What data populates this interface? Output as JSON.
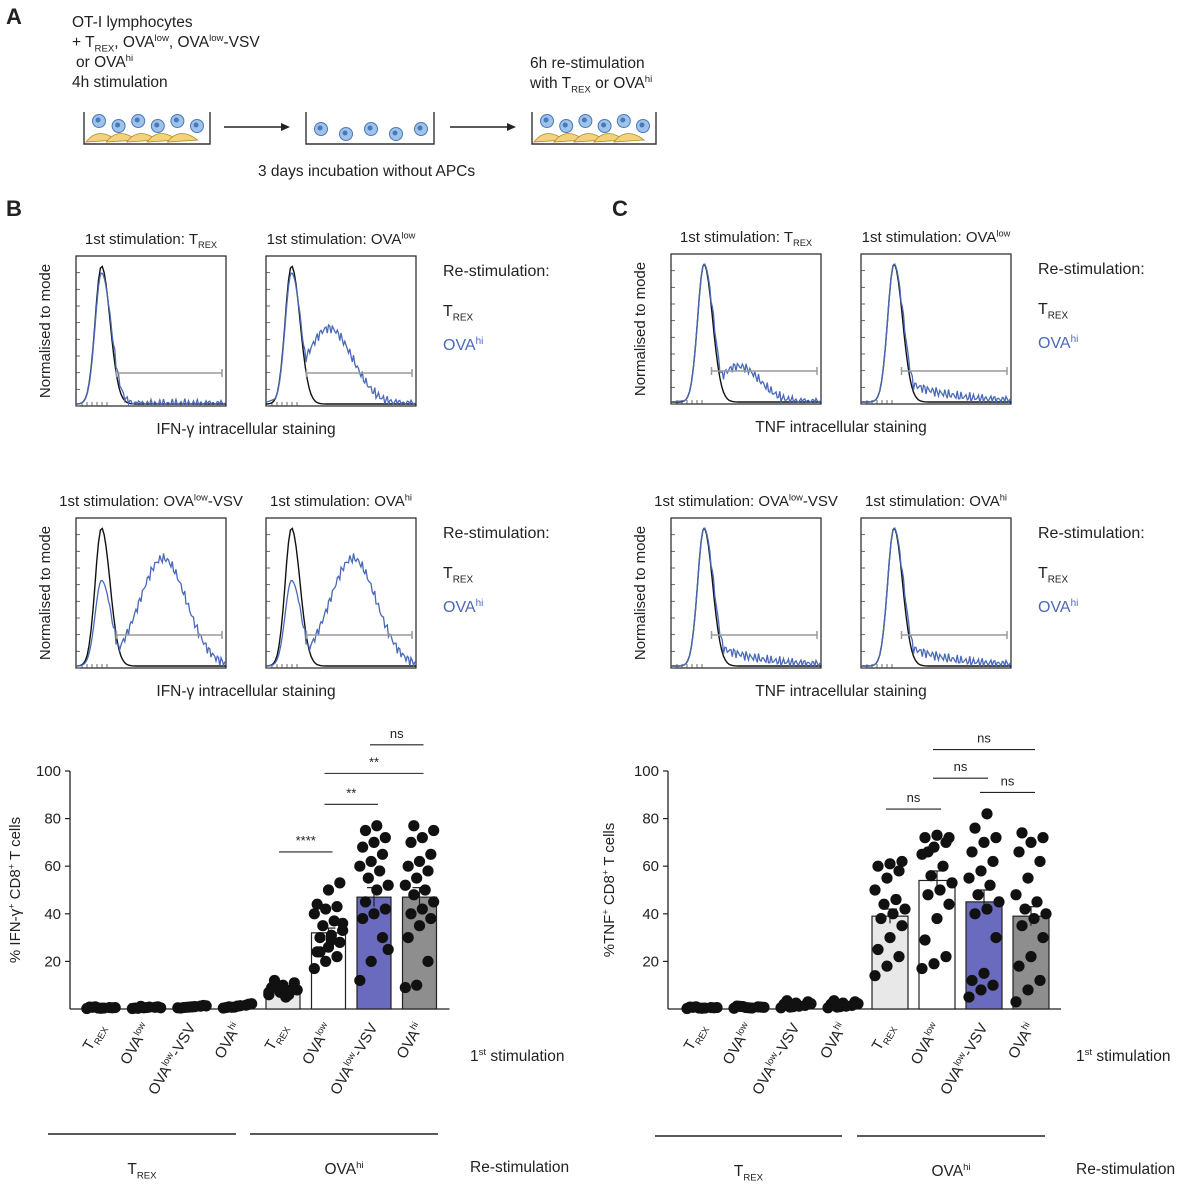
{
  "colors": {
    "black": "#111111",
    "blue": "#4a6ab8",
    "gate": "#9a9a9a",
    "bar_trex": "#e8e8e8",
    "bar_ovalow": "#ffffff",
    "bar_ovalowvsv": "#6a6abf",
    "bar_ovahi": "#8e8e8e"
  },
  "panelA": {
    "label": "A",
    "step1_lines": [
      "OT-I lymphocytes",
      "+ T{REX}, OVA^{low}, OVA^{low}-VSV",
      "or OVA^{hi}",
      "4h stimulation"
    ],
    "step3_lines": [
      "6h re-stimulation",
      "with T{REX} or OVA^{hi}"
    ],
    "incubation": "3 days incubation without APCs"
  },
  "panelB": {
    "label": "B",
    "restim_title": "Re-stimulation:",
    "legend": [
      "T{REX}",
      "OVA^{hi}"
    ],
    "ylabel": "Normalised to mode",
    "xlabel": "IFN-γ intracellular staining",
    "titles": [
      "1st stimulation: T{REX}",
      "1st stimulation: OVA^{low}",
      "1st stimulation: OVA^{low}-VSV",
      "1st stimulation: OVA^{hi}"
    ]
  },
  "panelC": {
    "label": "C",
    "restim_title": "Re-stimulation:",
    "legend": [
      "T{REX}",
      "OVA^{hi}"
    ],
    "ylabel": "Normalised to mode",
    "xlabel": "TNF intracellular staining",
    "titles": [
      "1st stimulation: T{REX}",
      "1st stimulation: OVA^{low}",
      "1st stimulation: OVA^{low}-VSV",
      "1st stimulation: OVA^{hi}"
    ]
  },
  "chart_data": [
    {
      "type": "bar",
      "title": "",
      "ylabel": "% IFN-γ^{+} CD8^{+} T cells",
      "ylim": [
        0,
        100
      ],
      "yticks": [
        20,
        40,
        60,
        80,
        100
      ],
      "categories": [
        "T{REX}",
        "OVA^{low}",
        "OVA^{low}-VSV",
        "OVA^{hi}",
        "T{REX}",
        "OVA^{low}",
        "OVA^{low}-VSV",
        "OVA^{hi}"
      ],
      "first_stim_label": "1^{st} stimulation",
      "restim_groups": [
        "T{REX}",
        "OVA^{hi}"
      ],
      "restim_label": "Re-stimulation",
      "means": [
        0.5,
        0.5,
        0.5,
        0.5,
        8,
        32,
        47,
        47
      ],
      "sem": [
        0,
        0,
        0,
        0,
        1,
        2,
        4,
        4
      ],
      "points": [
        [
          0.2,
          0.4,
          0.6,
          0.8,
          0.3,
          0.5,
          0.7,
          0.4,
          0.6,
          0.9
        ],
        [
          0.2,
          0.5,
          0.7,
          0.4,
          0.6,
          0.9,
          0.3,
          0.8,
          0.5,
          1.1
        ],
        [
          0.5,
          0.8,
          1.2,
          0.4,
          0.9,
          1.5,
          0.6,
          1.0,
          1.3,
          0.7
        ],
        [
          0.4,
          0.8,
          1.6,
          0.6,
          1.2,
          2.0,
          0.9,
          1.4,
          2.2,
          0.7
        ],
        [
          6,
          7,
          8,
          9,
          10,
          11,
          12,
          5,
          8,
          9,
          6,
          7
        ],
        [
          17,
          20,
          22,
          24,
          26,
          28,
          30,
          31,
          33,
          35,
          37,
          40,
          42,
          43,
          44,
          50,
          53,
          24,
          29,
          36
        ],
        [
          12,
          20,
          30,
          38,
          40,
          42,
          45,
          50,
          52,
          55,
          58,
          60,
          62,
          65,
          68,
          70,
          72,
          75,
          77,
          25
        ],
        [
          9,
          10,
          20,
          30,
          35,
          38,
          40,
          42,
          45,
          48,
          50,
          52,
          55,
          58,
          60,
          62,
          65,
          70,
          72,
          75,
          77
        ]
      ],
      "significance": [
        {
          "from": 4,
          "to": 5,
          "text": "****",
          "y": 66
        },
        {
          "from": 5,
          "to": 6,
          "text": "**",
          "y": 86
        },
        {
          "from": 5,
          "to": 7,
          "text": "**",
          "y": 99
        },
        {
          "from": 6,
          "to": 7,
          "text": "ns",
          "y": 111
        }
      ]
    },
    {
      "type": "bar",
      "title": "",
      "ylabel": "%TNF^{+} CD8^{+} T cells",
      "ylim": [
        0,
        100
      ],
      "yticks": [
        20,
        40,
        60,
        80,
        100
      ],
      "categories": [
        "T{REX}",
        "OVA^{low}",
        "OVA^{low}-VSV",
        "OVA^{hi}",
        "T{REX}",
        "OVA^{low}",
        "OVA^{low}-VSV",
        "OVA^{hi}"
      ],
      "first_stim_label": "1^{st} stimulation",
      "restim_groups": [
        "T{REX}",
        "OVA^{hi}"
      ],
      "restim_label": "Re-stimulation",
      "means": [
        0.5,
        0.5,
        0.5,
        0.5,
        39,
        54,
        45,
        39
      ],
      "sem": [
        0,
        0,
        0,
        0,
        3,
        4,
        5,
        4
      ],
      "points": [
        [
          0.2,
          0.4,
          0.6,
          0.8,
          0.3,
          0.5,
          0.7,
          0.4,
          0.6,
          0.9
        ],
        [
          0.3,
          0.6,
          0.9,
          1.2,
          0.5,
          0.8,
          1.1,
          0.4,
          0.7,
          1.0
        ],
        [
          0.5,
          1.0,
          1.5,
          2.0,
          2.5,
          3.0,
          3.5,
          1.2,
          2.2,
          0.8
        ],
        [
          0.5,
          1.0,
          1.5,
          2.0,
          2.5,
          3.0,
          3.5,
          1.2,
          2.2,
          0.8
        ],
        [
          14,
          18,
          22,
          25,
          30,
          35,
          38,
          40,
          42,
          44,
          46,
          50,
          55,
          58,
          60,
          61,
          62
        ],
        [
          17,
          19,
          22,
          29,
          38,
          44,
          48,
          50,
          53,
          56,
          60,
          65,
          68,
          70,
          72,
          73,
          72,
          66
        ],
        [
          5,
          8,
          10,
          12,
          15,
          30,
          40,
          42,
          45,
          48,
          52,
          55,
          58,
          62,
          66,
          70,
          72,
          76,
          82
        ],
        [
          3,
          8,
          12,
          18,
          22,
          30,
          35,
          38,
          40,
          42,
          45,
          48,
          55,
          62,
          66,
          70,
          72,
          74
        ]
      ],
      "significance": [
        {
          "from": 4,
          "to": 5,
          "text": "ns",
          "y": 84
        },
        {
          "from": 5,
          "to": 6,
          "text": "ns",
          "y": 97
        },
        {
          "from": 6,
          "to": 7,
          "text": "ns",
          "y": 91
        },
        {
          "from": 5,
          "to": 7,
          "text": "ns",
          "y": 109
        }
      ]
    }
  ]
}
